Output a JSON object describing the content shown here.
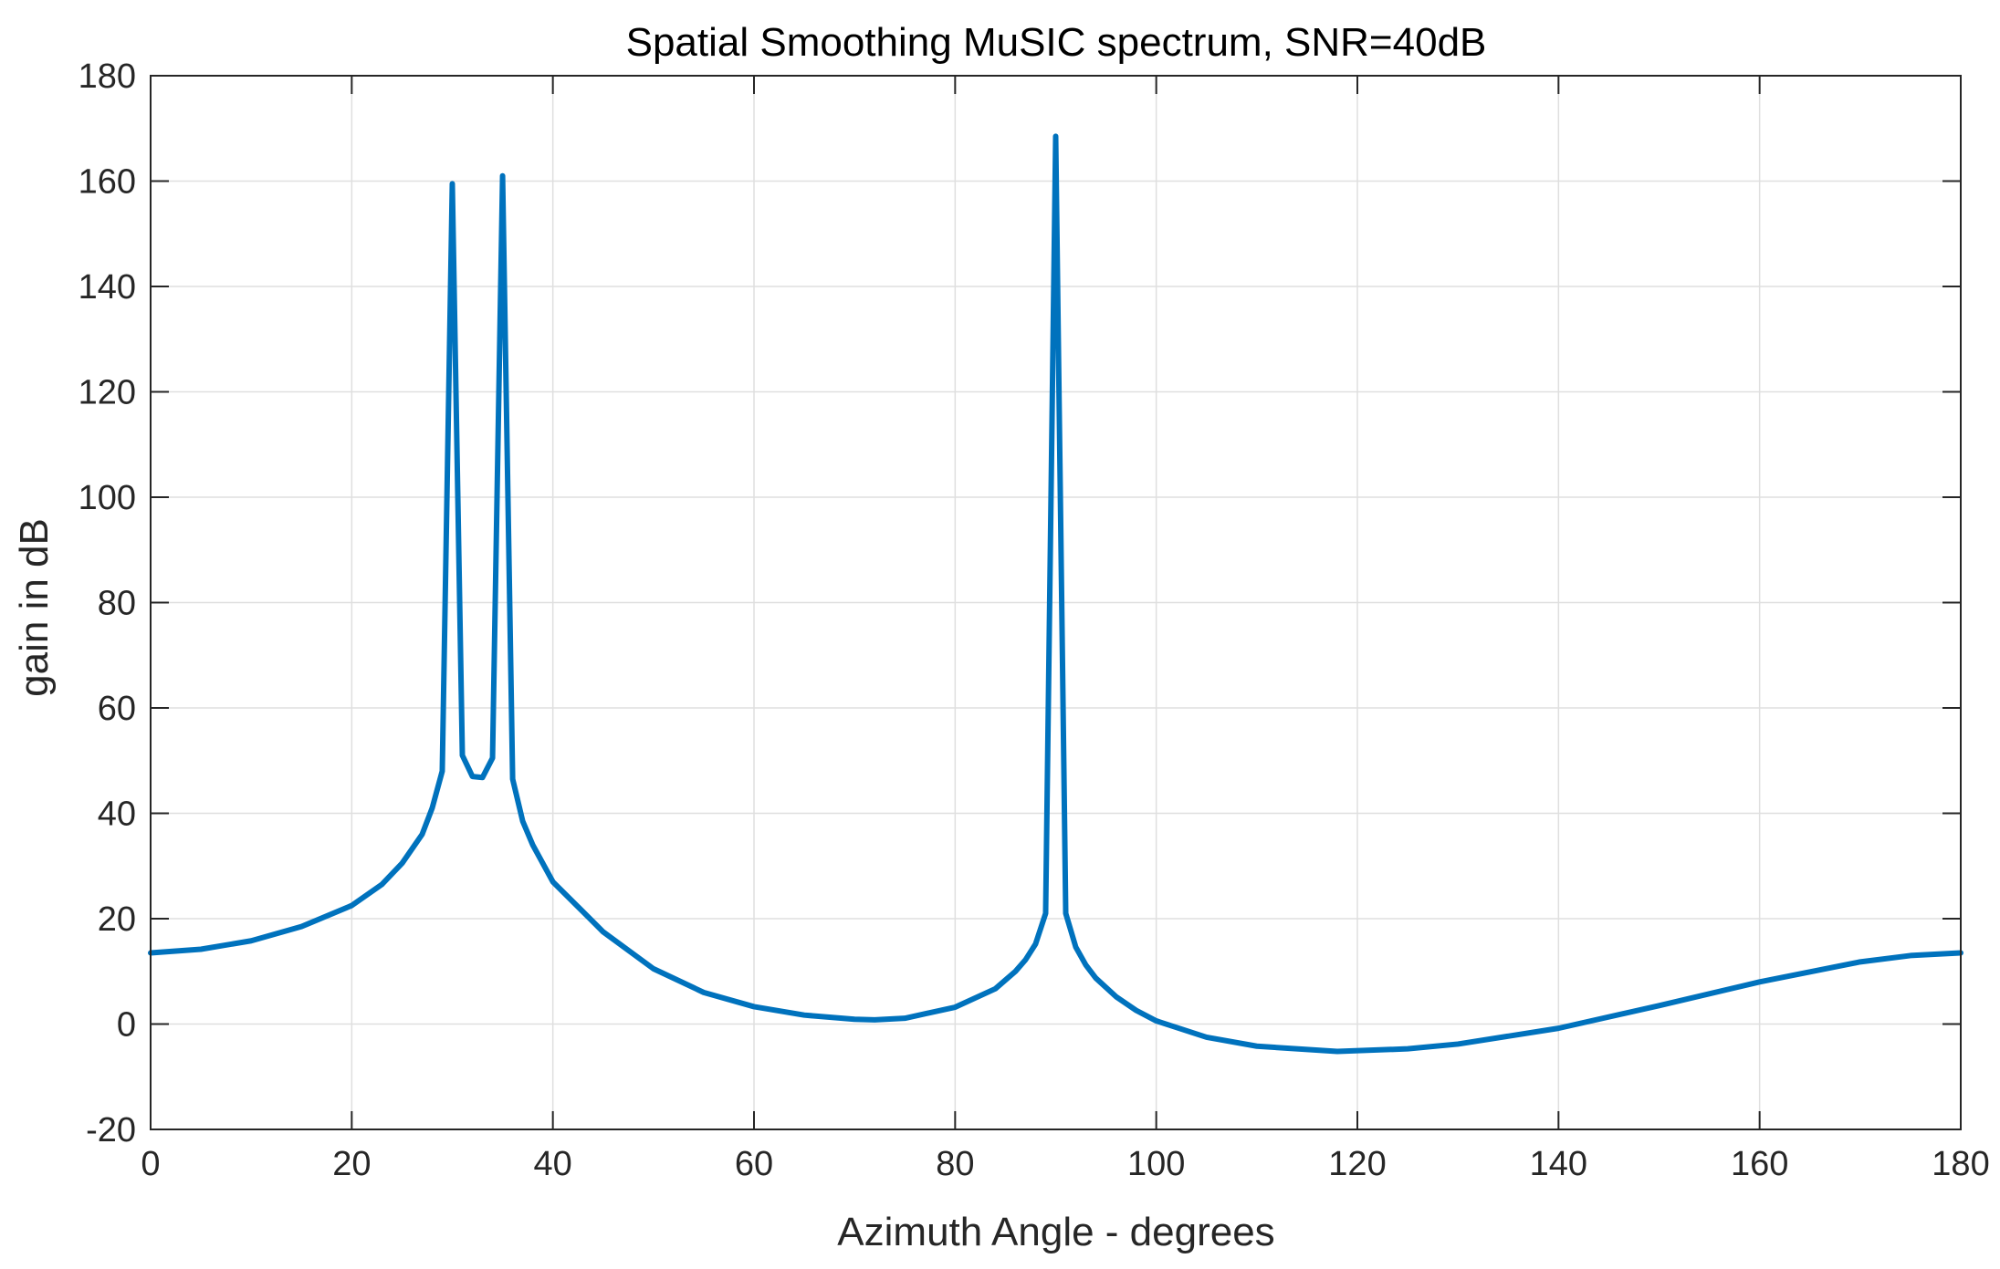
{
  "chart_data": {
    "type": "line",
    "title": "Spatial Smoothing MuSIC spectrum, SNR=40dB",
    "xlabel": "Azimuth Angle - degrees",
    "ylabel": "gain in dB",
    "xlim": [
      0,
      180
    ],
    "ylim": [
      -20,
      180
    ],
    "xticks": [
      0,
      20,
      40,
      60,
      80,
      100,
      120,
      140,
      160,
      180
    ],
    "yticks": [
      -20,
      0,
      20,
      40,
      60,
      80,
      100,
      120,
      140,
      160,
      180
    ],
    "xtick_labels": [
      "0",
      "20",
      "40",
      "60",
      "80",
      "100",
      "120",
      "140",
      "160",
      "180"
    ],
    "ytick_labels": [
      "-20",
      "0",
      "20",
      "40",
      "60",
      "80",
      "100",
      "120",
      "140",
      "160",
      "180"
    ],
    "grid": true,
    "line_color": "#0072BD",
    "series": [
      {
        "x": [
          0,
          5,
          10,
          15,
          20,
          23,
          25,
          27,
          28,
          29,
          30,
          31,
          32,
          33,
          34,
          35,
          36,
          37,
          38,
          40,
          45,
          50,
          55,
          60,
          65,
          70,
          72,
          75,
          80,
          84,
          86,
          87,
          88,
          89,
          90,
          91,
          92,
          93,
          94,
          96,
          98,
          100,
          105,
          110,
          118,
          125,
          130,
          140,
          150,
          160,
          170,
          175,
          180
        ],
        "y": [
          13.5,
          14.2,
          15.8,
          18.5,
          22.5,
          26.5,
          30.5,
          36,
          41,
          48,
          159.5,
          51,
          47,
          46.8,
          50.5,
          161,
          46.5,
          38.5,
          34,
          27,
          17.5,
          10.5,
          6,
          3.3,
          1.7,
          0.9,
          0.8,
          1.1,
          3.2,
          6.7,
          10,
          12.2,
          15.2,
          21,
          168.5,
          21,
          14.6,
          11.2,
          8.7,
          5.2,
          2.6,
          0.6,
          -2.5,
          -4.2,
          -5.2,
          -4.7,
          -3.8,
          -0.8,
          3.5,
          8,
          11.8,
          13,
          13.5
        ]
      }
    ]
  }
}
